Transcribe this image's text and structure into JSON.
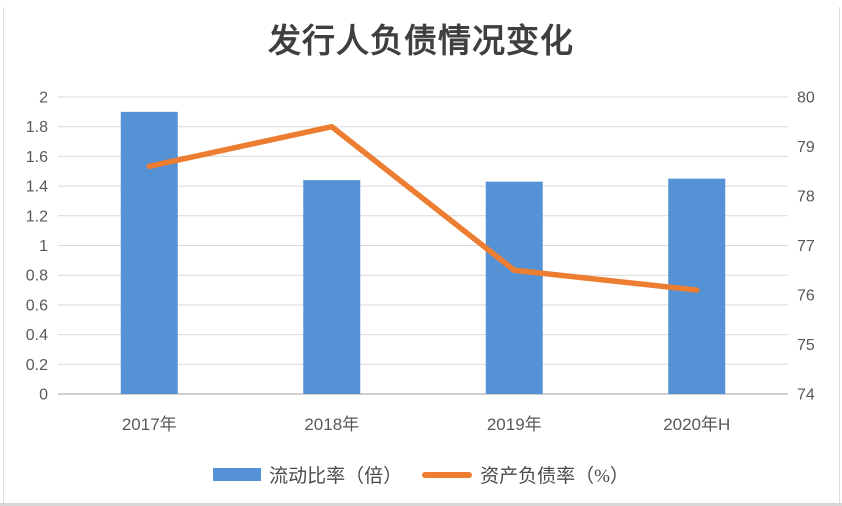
{
  "chart_data": {
    "type": "combo",
    "title": "发行人负债情况变化",
    "categories": [
      "2017年",
      "2018年",
      "2019年",
      "2020年H"
    ],
    "series": [
      {
        "name": "流动比率（倍）",
        "type": "bar",
        "axis": "left",
        "color": "#5592D5",
        "values": [
          1.9,
          1.44,
          1.43,
          1.45
        ]
      },
      {
        "name": "资产负债率（%）",
        "type": "line",
        "axis": "right",
        "color": "#ED7D31",
        "values": [
          78.6,
          79.4,
          76.5,
          76.1
        ]
      }
    ],
    "left_axis": {
      "min": 0,
      "max": 2,
      "step": 0.2,
      "ticks": [
        "0",
        "0.2",
        "0.4",
        "0.6",
        "0.8",
        "1",
        "1.2",
        "1.4",
        "1.6",
        "1.8",
        "2"
      ]
    },
    "right_axis": {
      "min": 74,
      "max": 80,
      "step": 1,
      "ticks": [
        "74",
        "75",
        "76",
        "77",
        "78",
        "79",
        "80"
      ]
    },
    "grid": "horizontal",
    "legend_position": "bottom",
    "colors": {
      "gridline": "#D9D9D9",
      "axis_line": "#BFBFBF",
      "tick_text": "#595959",
      "title_text": "#3F3F3F"
    }
  }
}
